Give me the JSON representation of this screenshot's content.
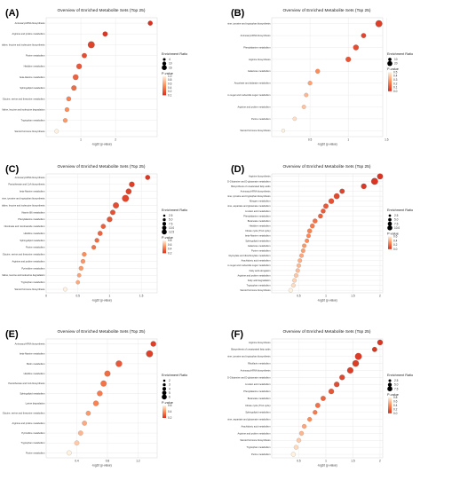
{
  "colors": {
    "low_p": "#d7301f",
    "mid_p": "#fc8d59",
    "high_p": "#fff2e0"
  },
  "chart_data": [
    {
      "panel": "(A)",
      "type": "scatter",
      "title": "Overview of Enriched Metabolite Sets (Top 25)",
      "xlabel": "-log10 (p-value)",
      "xlim": [
        0,
        3.2
      ],
      "xticks": [
        1,
        2
      ],
      "legend": {
        "size_title": "Enrichment Ratio",
        "size_values": [
          "4",
          "10",
          "16"
        ],
        "color_title": "P-value",
        "color_values": [
          "1.0",
          "0.8",
          "0.6",
          "0.4",
          "0.2",
          "0.1"
        ]
      },
      "categories": [
        "Aminoacyl-tRNA biosynthesis",
        "Arginine and proline metabolism",
        "Valine, leucine and isoleucine biosynthesis",
        "Purine metabolism",
        "Histidine metabolism",
        "beta-Alanine metabolism",
        "Sphingolipid metabolism",
        "Glycine, serine and threonine metabolism",
        "Valine, leucine and isoleucine degradation",
        "Tryptophan metabolism",
        "Steroid hormone biosynthesis"
      ],
      "x": [
        3.0,
        1.7,
        1.3,
        1.1,
        0.95,
        0.85,
        0.8,
        0.65,
        0.6,
        0.55,
        0.3
      ],
      "ratio": [
        5,
        6,
        16,
        6,
        8,
        9,
        7,
        5,
        4,
        4,
        3
      ],
      "p": [
        0.001,
        0.02,
        0.05,
        0.08,
        0.11,
        0.14,
        0.16,
        0.22,
        0.25,
        0.28,
        0.5
      ]
    },
    {
      "panel": "(B)",
      "type": "scatter",
      "title": "Overview of Enriched Metabolite Sets (Top 25)",
      "xlabel": "-log10 (p-value)",
      "xlim": [
        0,
        1.45
      ],
      "xticks": [
        0.5,
        1.0,
        1.5
      ],
      "legend": {
        "size_title": "Enrichment Ratio",
        "size_values": [
          "10",
          "20"
        ],
        "color_title": "P-value",
        "color_values": [
          "0.5",
          "0.4",
          "0.3",
          "0.2",
          "0.1",
          "0.0"
        ]
      },
      "categories": [
        "Phenylalanine, tyrosine and tryptophan biosynthesis",
        "Aminoacyl-tRNA biosynthesis",
        "Phenylalanine metabolism",
        "Arginine biosynthesis",
        "Galactose metabolism",
        "Ascorbate and aldarate metabolism",
        "Amino sugar and nucleotide sugar metabolism",
        "Arginine and proline metabolism",
        "Purine metabolism",
        "Steroid hormone biosynthesis"
      ],
      "x": [
        1.4,
        1.2,
        1.1,
        1.0,
        0.6,
        0.5,
        0.45,
        0.42,
        0.3,
        0.15
      ],
      "ratio": [
        22,
        8,
        12,
        10,
        6,
        5,
        4,
        4,
        3,
        2
      ],
      "p": [
        0.04,
        0.06,
        0.08,
        0.1,
        0.25,
        0.3,
        0.35,
        0.38,
        0.45,
        0.5
      ]
    },
    {
      "panel": "(C)",
      "type": "scatter",
      "title": "Overview of Enriched Metabolite Sets (Top 25)",
      "xlabel": "-log10 (p-value)",
      "xlim": [
        0,
        1.75
      ],
      "xticks": [
        0.0,
        0.5,
        1.0,
        1.5
      ],
      "legend": {
        "size_title": "Enrichment Ratio",
        "size_values": [
          "2.5",
          "5.0",
          "7.5",
          "10.0",
          "12.5"
        ],
        "color_title": "P-value",
        "color_values": [
          "0.8",
          "0.6",
          "0.4",
          "0.2"
        ]
      },
      "categories": [
        "Aminoacyl-tRNA biosynthesis",
        "Pantothenate and CoA biosynthesis",
        "beta-Alanine metabolism",
        "Phenylalanine, tyrosine and tryptophan biosynthesis",
        "Valine, leucine and isoleucine biosynthesis",
        "Vitamin B6 metabolism",
        "Phenylalanine metabolism",
        "Nicotinate and nicotinamide metabolism",
        "Histidine metabolism",
        "Sphingolipid metabolism",
        "Purine metabolism",
        "Glycine, serine and threonine metabolism",
        "Arginine and proline metabolism",
        "Pyrimidine metabolism",
        "Valine, leucine and isoleucine degradation",
        "Tryptophan metabolism",
        "Steroid hormone biosynthesis"
      ],
      "x": [
        1.6,
        1.35,
        1.3,
        1.25,
        1.1,
        1.05,
        1.0,
        0.9,
        0.85,
        0.8,
        0.75,
        0.6,
        0.58,
        0.55,
        0.52,
        0.5,
        0.3
      ],
      "ratio": [
        4,
        6,
        7,
        12,
        8,
        5,
        6,
        4,
        4,
        3,
        3,
        3,
        3,
        3,
        2,
        2,
        2
      ],
      "p": [
        0.02,
        0.04,
        0.05,
        0.06,
        0.08,
        0.09,
        0.1,
        0.13,
        0.14,
        0.16,
        0.18,
        0.25,
        0.27,
        0.28,
        0.3,
        0.32,
        0.5
      ]
    },
    {
      "panel": "(D)",
      "type": "scatter",
      "title": "Overview of Enriched Metabolite Sets (Top 25)",
      "xlabel": "-log10 (p-value)",
      "xlim": [
        0,
        2.05
      ],
      "xticks": [
        0.5,
        1.0,
        1.5,
        2.0
      ],
      "legend": {
        "size_title": "Enrichment Ratio",
        "size_values": [
          "2.5",
          "5.0",
          "7.5",
          "10.0"
        ],
        "color_title": "P-value",
        "color_values": [
          "0.6",
          "0.4",
          "0.2",
          "0.0"
        ]
      },
      "categories": [
        "Arginine biosynthesis",
        "D-Glutamine and D-glutamate metabolism",
        "Biosynthesis of unsaturated fatty acids",
        "Aminoacyl-tRNA biosynthesis",
        "Phenylalanine, tyrosine and tryptophan biosynthesis",
        "Nitrogen metabolism",
        "Alanine, aspartate and glutamate metabolism",
        "Linoleic acid metabolism",
        "Phenylalanine metabolism",
        "Butanoate metabolism",
        "Histidine metabolism",
        "Citrate cycle (TCA cycle)",
        "beta-Alanine metabolism",
        "Sphingolipid metabolism",
        "Galactose metabolism",
        "Purine metabolism",
        "Glyoxylate and dicarboxylate metabolism",
        "Arachidonic acid metabolism",
        "Amino sugar and nucleotide sugar metabolism",
        "Fatty acid elongation",
        "Arginine and proline metabolism",
        "Fatty acid degradation",
        "Tryptophan metabolism",
        "Steroid hormone biosynthesis"
      ],
      "x": [
        2.0,
        1.9,
        1.7,
        1.3,
        1.2,
        1.1,
        1.0,
        0.95,
        0.9,
        0.8,
        0.75,
        0.7,
        0.68,
        0.65,
        0.6,
        0.58,
        0.55,
        0.52,
        0.5,
        0.48,
        0.45,
        0.42,
        0.4,
        0.35
      ],
      "ratio": [
        6,
        10,
        5,
        4,
        6,
        5,
        4,
        3,
        3,
        3,
        3,
        3,
        2,
        2,
        2,
        2,
        2,
        2,
        2,
        2,
        2,
        2,
        2,
        2
      ],
      "p": [
        0.01,
        0.012,
        0.02,
        0.05,
        0.06,
        0.08,
        0.1,
        0.11,
        0.12,
        0.16,
        0.18,
        0.2,
        0.21,
        0.22,
        0.25,
        0.26,
        0.28,
        0.3,
        0.32,
        0.33,
        0.35,
        0.38,
        0.4,
        0.45
      ]
    },
    {
      "panel": "(E)",
      "type": "scatter",
      "title": "Overview of Enriched Metabolite Sets (Top 25)",
      "xlabel": "-log10 (p-value)",
      "xlim": [
        0,
        1.45
      ],
      "xticks": [
        0.4,
        0.8,
        1.2
      ],
      "legend": {
        "size_title": "Enrichment Ratio",
        "size_values": [
          "2",
          "3",
          "4",
          "5",
          "6"
        ],
        "color_title": "P-value",
        "color_values": [
          "0.6",
          "0.4",
          "0.2"
        ]
      },
      "categories": [
        "Aminoacyl-tRNA biosynthesis",
        "beta-Alanine metabolism",
        "Biotin metabolism",
        "Histidine metabolism",
        "Pantothenate and CoA biosynthesis",
        "Sphingolipid metabolism",
        "Lysine degradation",
        "Glycine, serine and threonine metabolism",
        "Arginine and proline metabolism",
        "Pyrimidine metabolism",
        "Tryptophan metabolism",
        "Purine metabolism"
      ],
      "x": [
        1.4,
        1.35,
        0.95,
        0.8,
        0.75,
        0.7,
        0.65,
        0.55,
        0.5,
        0.45,
        0.4,
        0.3
      ],
      "ratio": [
        3,
        6,
        5,
        4,
        4,
        3,
        3,
        2,
        2,
        2,
        2,
        2
      ],
      "p": [
        0.04,
        0.045,
        0.11,
        0.16,
        0.18,
        0.2,
        0.22,
        0.28,
        0.32,
        0.35,
        0.4,
        0.5
      ]
    },
    {
      "panel": "(F)",
      "type": "scatter",
      "title": "Overview of Enriched Metabolite Sets (Top 25)",
      "xlabel": "-log10 (p-value)",
      "xlim": [
        0,
        2.05
      ],
      "xticks": [
        0.5,
        1.0,
        1.5,
        2.0
      ],
      "legend": {
        "size_title": "Enrichment Ratio",
        "size_values": [
          "2.5",
          "5.0",
          "7.5"
        ],
        "color_title": "P-value",
        "color_values": [
          "0.8",
          "0.6",
          "0.4",
          "0.2",
          "0.0"
        ]
      },
      "categories": [
        "Arginine biosynthesis",
        "Biosynthesis of unsaturated fatty acids",
        "Phenylalanine, tyrosine and tryptophan biosynthesis",
        "Riboflavin metabolism",
        "Aminoacyl-tRNA biosynthesis",
        "D-Glutamine and D-glutamate metabolism",
        "Linoleic acid metabolism",
        "Phenylalanine metabolism",
        "Butanoate metabolism",
        "Citrate cycle (TCA cycle)",
        "Sphingolipid metabolism",
        "Alanine, aspartate and glutamate metabolism",
        "Arachidonic acid metabolism",
        "Arginine and proline metabolism",
        "Steroid hormone biosynthesis",
        "Tryptophan metabolism",
        "Purine metabolism"
      ],
      "x": [
        2.0,
        1.9,
        1.6,
        1.55,
        1.45,
        1.3,
        1.2,
        1.1,
        0.95,
        0.85,
        0.8,
        0.7,
        0.6,
        0.55,
        0.5,
        0.45,
        0.4
      ],
      "ratio": [
        4,
        3,
        8,
        7,
        6,
        4,
        4,
        4,
        3,
        3,
        2,
        2,
        2,
        2,
        2,
        2,
        2
      ],
      "p": [
        0.01,
        0.012,
        0.025,
        0.028,
        0.035,
        0.05,
        0.06,
        0.08,
        0.11,
        0.14,
        0.16,
        0.2,
        0.25,
        0.28,
        0.32,
        0.35,
        0.4
      ]
    }
  ]
}
